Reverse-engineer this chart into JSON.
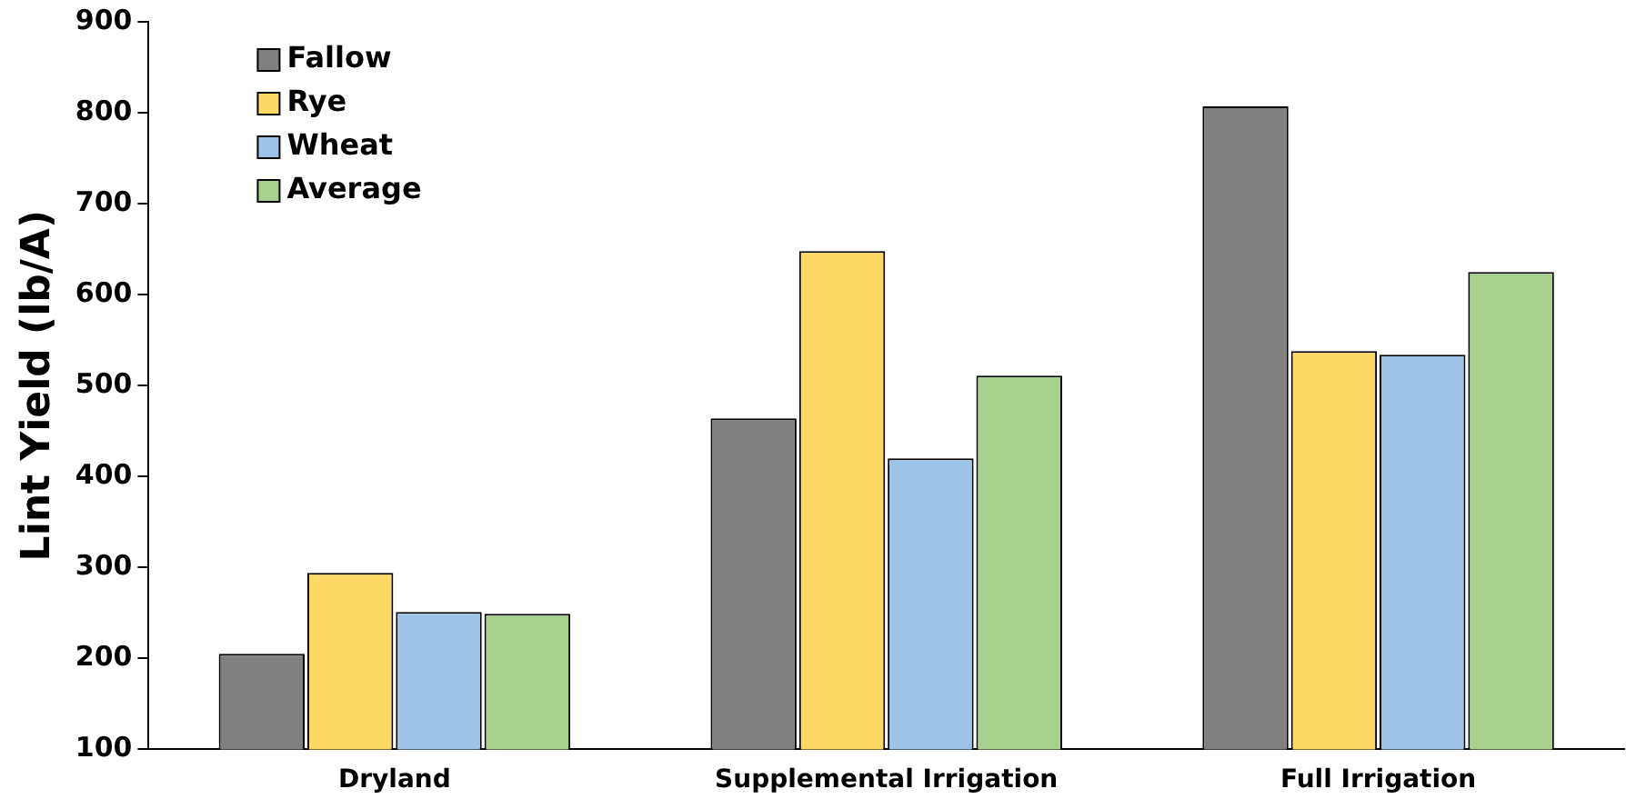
{
  "chart_data": {
    "type": "bar",
    "ylabel": "Lint Yield (lb/A)",
    "categories": [
      "Dryland",
      "Supplemental Irrigation",
      "Full Irrigation"
    ],
    "series": [
      {
        "name": "Fallow",
        "color": "#808080",
        "values": [
          205,
          464,
          807
        ]
      },
      {
        "name": "Rye",
        "color": "#ffd966",
        "values": [
          294,
          648,
          538
        ]
      },
      {
        "name": "Wheat",
        "color": "#9dc3e6",
        "values": [
          251,
          420,
          534
        ]
      },
      {
        "name": "Average",
        "color": "#a9d18e",
        "values": [
          249,
          511,
          625
        ]
      }
    ],
    "ylim": [
      100,
      900
    ],
    "yticks": [
      100,
      200,
      300,
      400,
      500,
      600,
      700,
      800,
      900
    ],
    "grid": false,
    "legend": "top left"
  }
}
